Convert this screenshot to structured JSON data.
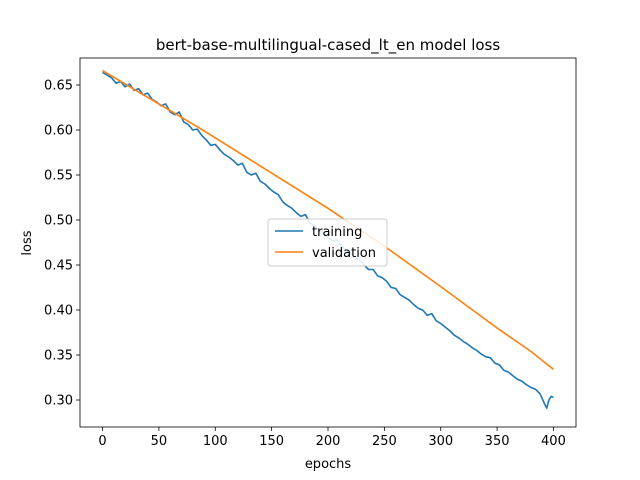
{
  "chart_data": {
    "type": "line",
    "title": "bert-base-multilingual-cased_lt_en model loss",
    "xlabel": "epochs",
    "ylabel": "loss",
    "xlim": [
      -20,
      420
    ],
    "ylim": [
      0.27,
      0.68
    ],
    "xticks": [
      0,
      50,
      100,
      150,
      200,
      250,
      300,
      350,
      400
    ],
    "yticks": [
      0.3,
      0.35,
      0.4,
      0.45,
      0.5,
      0.55,
      0.6,
      0.65
    ],
    "ytick_labels": [
      "0.30",
      "0.35",
      "0.40",
      "0.45",
      "0.50",
      "0.55",
      "0.60",
      "0.65"
    ],
    "grid": false,
    "legend_position": "center",
    "series": [
      {
        "name": "training",
        "color": "#1f77b4",
        "points": [
          [
            0,
            0.664
          ],
          [
            4,
            0.661
          ],
          [
            8,
            0.658
          ],
          [
            12,
            0.652
          ],
          [
            16,
            0.654
          ],
          [
            20,
            0.648
          ],
          [
            24,
            0.651
          ],
          [
            28,
            0.644
          ],
          [
            32,
            0.646
          ],
          [
            36,
            0.639
          ],
          [
            40,
            0.641
          ],
          [
            44,
            0.634
          ],
          [
            48,
            0.631
          ],
          [
            52,
            0.627
          ],
          [
            56,
            0.629
          ],
          [
            60,
            0.62
          ],
          [
            64,
            0.617
          ],
          [
            68,
            0.62
          ],
          [
            72,
            0.609
          ],
          [
            76,
            0.606
          ],
          [
            80,
            0.6
          ],
          [
            84,
            0.601
          ],
          [
            88,
            0.594
          ],
          [
            92,
            0.589
          ],
          [
            96,
            0.583
          ],
          [
            100,
            0.584
          ],
          [
            104,
            0.578
          ],
          [
            108,
            0.573
          ],
          [
            112,
            0.57
          ],
          [
            116,
            0.566
          ],
          [
            120,
            0.561
          ],
          [
            124,
            0.563
          ],
          [
            128,
            0.553
          ],
          [
            132,
            0.55
          ],
          [
            136,
            0.552
          ],
          [
            140,
            0.543
          ],
          [
            144,
            0.54
          ],
          [
            148,
            0.535
          ],
          [
            152,
            0.531
          ],
          [
            156,
            0.528
          ],
          [
            160,
            0.52
          ],
          [
            164,
            0.516
          ],
          [
            168,
            0.513
          ],
          [
            172,
            0.508
          ],
          [
            176,
            0.504
          ],
          [
            180,
            0.506
          ],
          [
            184,
            0.497
          ],
          [
            188,
            0.493
          ],
          [
            192,
            0.489
          ],
          [
            196,
            0.486
          ],
          [
            200,
            0.48
          ],
          [
            204,
            0.477
          ],
          [
            208,
            0.478
          ],
          [
            212,
            0.471
          ],
          [
            216,
            0.467
          ],
          [
            220,
            0.463
          ],
          [
            224,
            0.458
          ],
          [
            228,
            0.456
          ],
          [
            232,
            0.45
          ],
          [
            236,
            0.445
          ],
          [
            240,
            0.445
          ],
          [
            244,
            0.438
          ],
          [
            248,
            0.436
          ],
          [
            252,
            0.432
          ],
          [
            256,
            0.425
          ],
          [
            260,
            0.424
          ],
          [
            264,
            0.417
          ],
          [
            268,
            0.414
          ],
          [
            272,
            0.411
          ],
          [
            276,
            0.406
          ],
          [
            280,
            0.402
          ],
          [
            284,
            0.4
          ],
          [
            288,
            0.394
          ],
          [
            292,
            0.396
          ],
          [
            296,
            0.388
          ],
          [
            300,
            0.385
          ],
          [
            304,
            0.381
          ],
          [
            308,
            0.377
          ],
          [
            312,
            0.372
          ],
          [
            316,
            0.369
          ],
          [
            320,
            0.365
          ],
          [
            324,
            0.362
          ],
          [
            328,
            0.358
          ],
          [
            332,
            0.355
          ],
          [
            336,
            0.351
          ],
          [
            340,
            0.348
          ],
          [
            344,
            0.347
          ],
          [
            348,
            0.341
          ],
          [
            352,
            0.339
          ],
          [
            356,
            0.333
          ],
          [
            360,
            0.331
          ],
          [
            364,
            0.327
          ],
          [
            368,
            0.323
          ],
          [
            372,
            0.321
          ],
          [
            376,
            0.317
          ],
          [
            380,
            0.314
          ],
          [
            384,
            0.312
          ],
          [
            388,
            0.307
          ],
          [
            392,
            0.296
          ],
          [
            394,
            0.291
          ],
          [
            396,
            0.3
          ],
          [
            398,
            0.304
          ],
          [
            400,
            0.303
          ]
        ]
      },
      {
        "name": "validation",
        "color": "#ff7f0e",
        "points": [
          [
            0,
            0.666
          ],
          [
            85,
            0.603
          ],
          [
            200,
            0.513
          ],
          [
            250,
            0.471
          ],
          [
            300,
            0.426
          ],
          [
            350,
            0.38
          ],
          [
            380,
            0.354
          ],
          [
            400,
            0.334
          ]
        ]
      }
    ]
  }
}
